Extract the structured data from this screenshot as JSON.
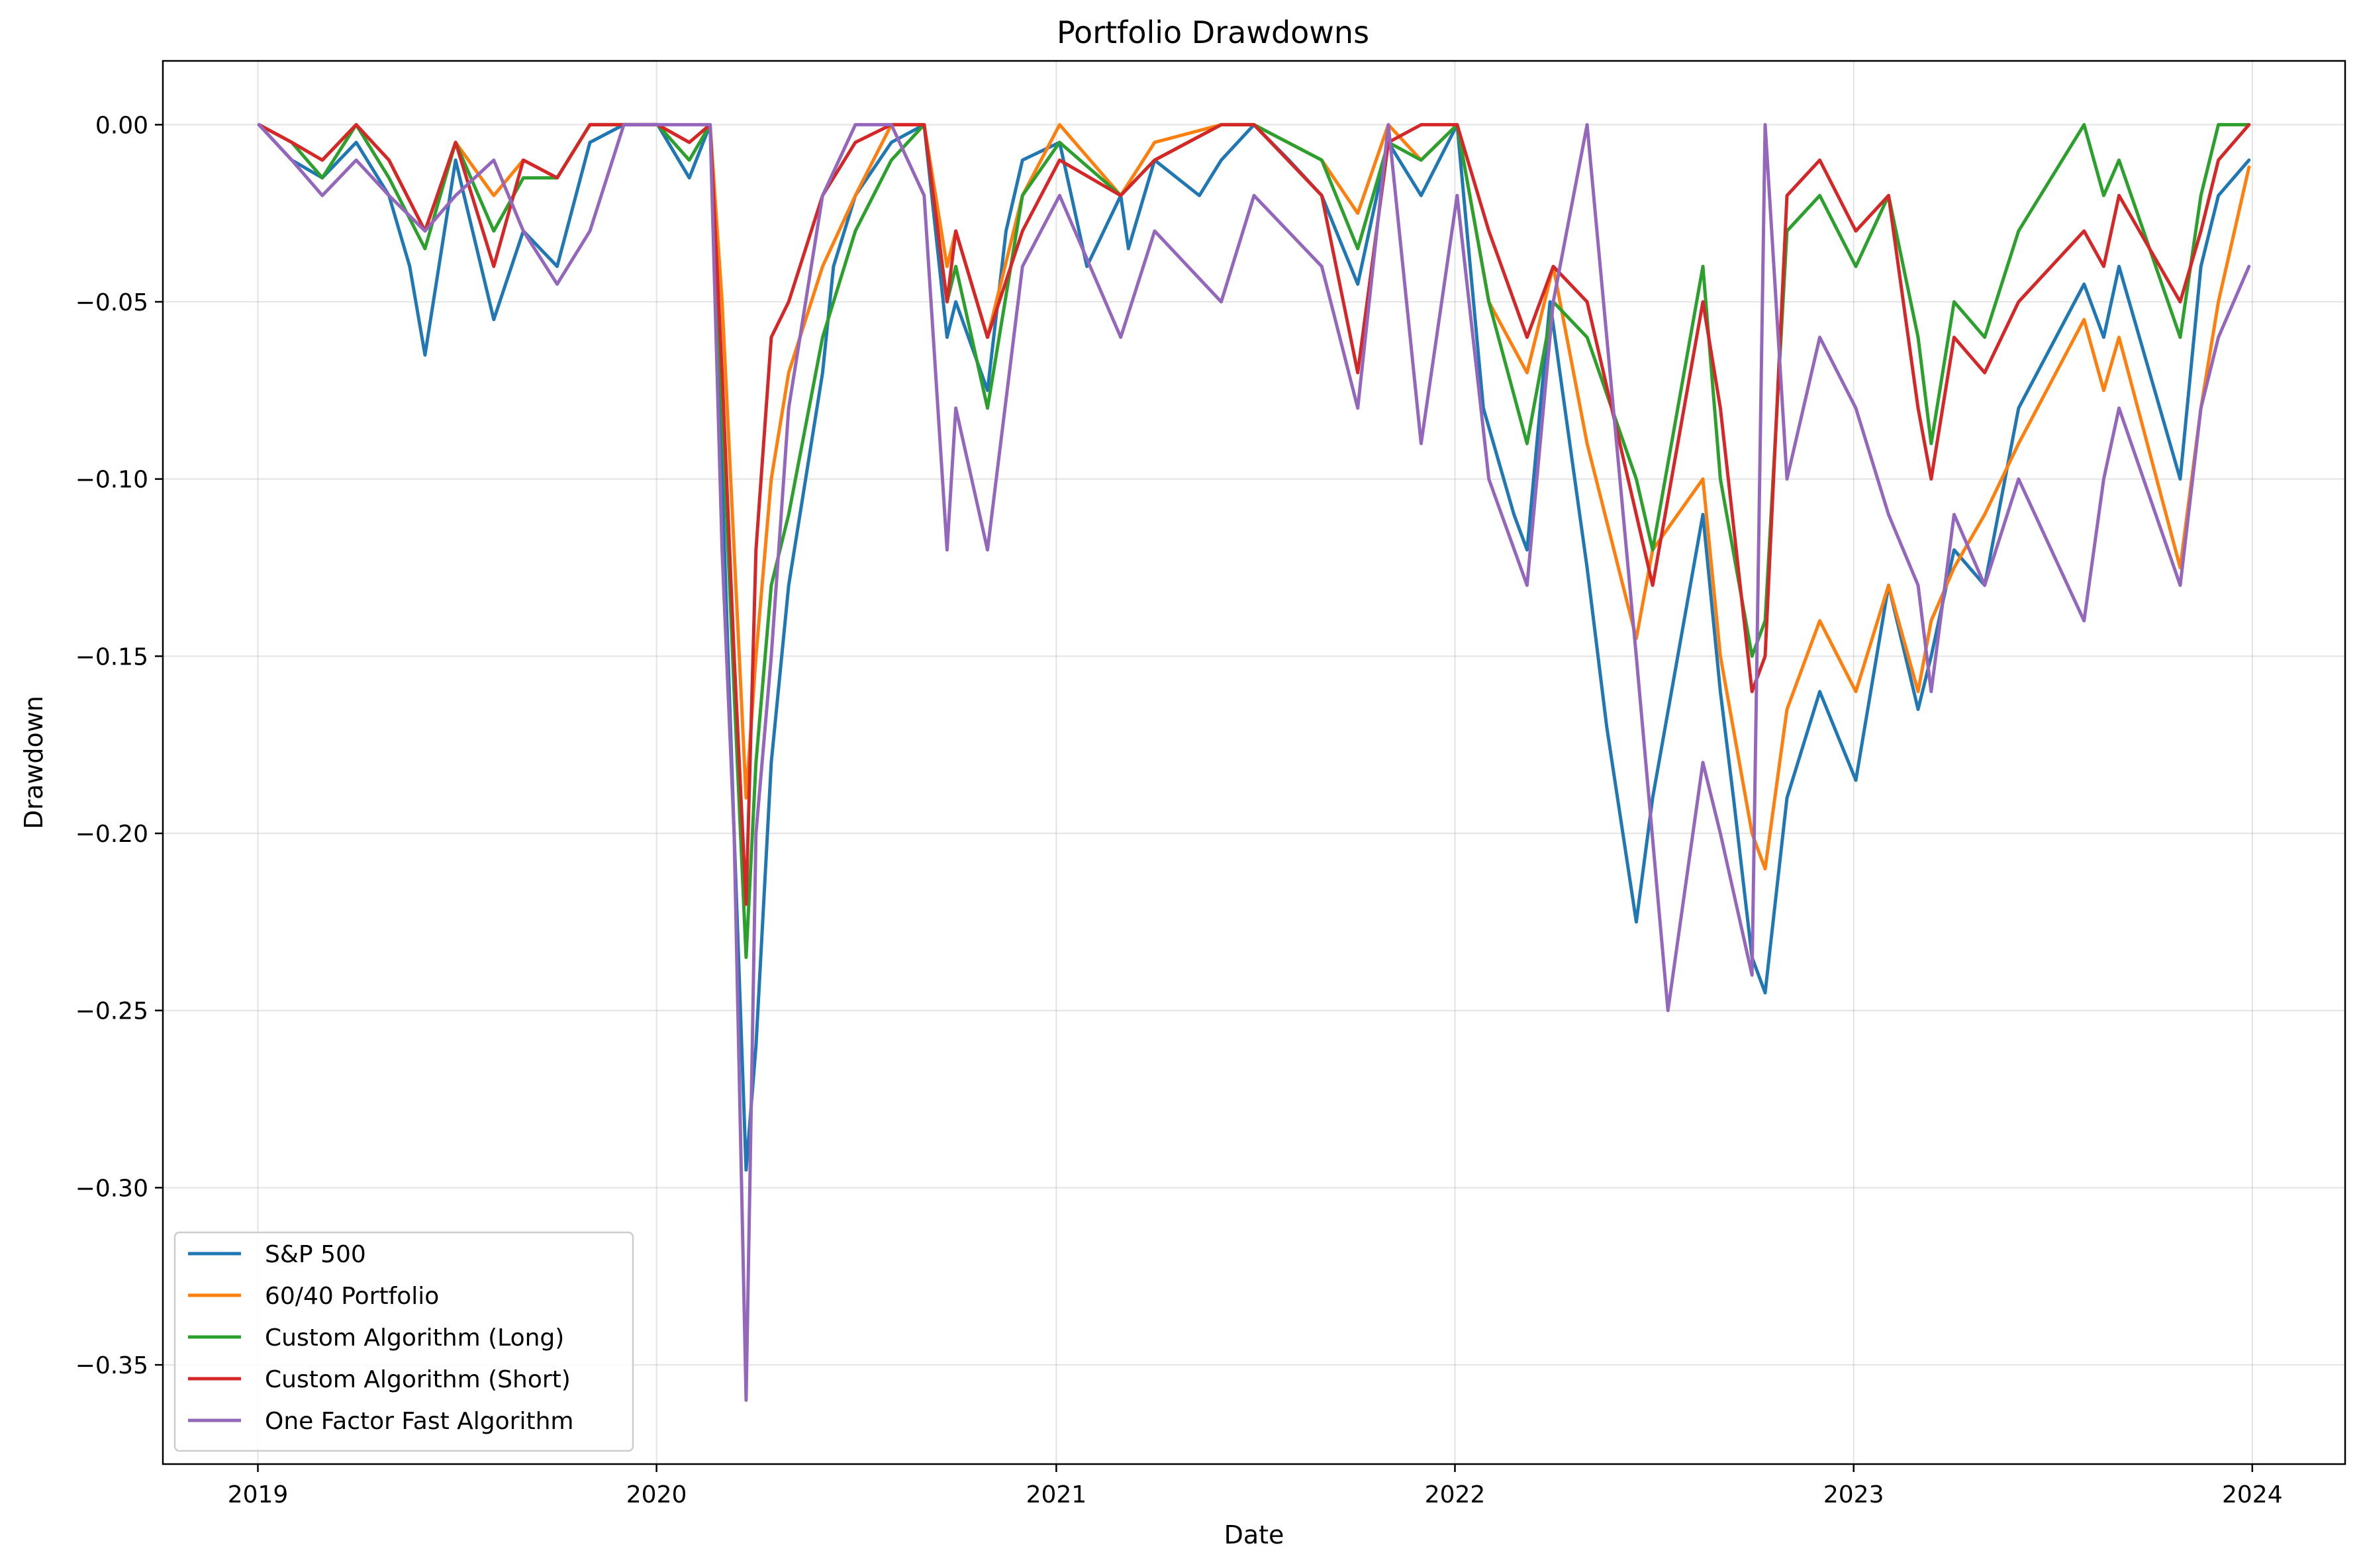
{
  "chart_data": {
    "type": "line",
    "title": "Portfolio Drawdowns",
    "xlabel": "Date",
    "ylabel": "Drawdown",
    "x_type": "date",
    "xlim": [
      "2018-10-06",
      "2024-03-26"
    ],
    "ylim": [
      -0.378,
      0.018
    ],
    "x_ticks": [
      "2019-01-01",
      "2020-01-01",
      "2021-01-01",
      "2022-01-01",
      "2023-01-01",
      "2024-01-01"
    ],
    "x_tick_labels": [
      "2019",
      "2020",
      "2021",
      "2022",
      "2023",
      "2024"
    ],
    "y_ticks": [
      0.0,
      -0.05,
      -0.1,
      -0.15,
      -0.2,
      -0.25,
      -0.3,
      -0.35
    ],
    "y_tick_labels": [
      "0.00",
      "−0.05",
      "−0.10",
      "−0.15",
      "−0.20",
      "−0.25",
      "−0.30",
      "−0.35"
    ],
    "grid": true,
    "legend_position": "lower-left",
    "series": [
      {
        "name": "S&P 500",
        "color": "#1f77b4",
        "x": [
          "2019-01-02",
          "2019-02-01",
          "2019-03-01",
          "2019-04-01",
          "2019-05-01",
          "2019-05-20",
          "2019-06-03",
          "2019-07-01",
          "2019-08-05",
          "2019-09-01",
          "2019-10-02",
          "2019-11-01",
          "2019-12-02",
          "2020-01-02",
          "2020-01-31",
          "2020-02-19",
          "2020-03-01",
          "2020-03-12",
          "2020-03-23",
          "2020-04-01",
          "2020-04-15",
          "2020-05-01",
          "2020-06-01",
          "2020-06-11",
          "2020-07-01",
          "2020-08-03",
          "2020-09-02",
          "2020-09-23",
          "2020-10-01",
          "2020-10-30",
          "2020-11-16",
          "2020-12-01",
          "2021-01-04",
          "2021-01-29",
          "2021-03-01",
          "2021-03-08",
          "2021-04-01",
          "2021-05-12",
          "2021-06-01",
          "2021-07-01",
          "2021-08-02",
          "2021-09-01",
          "2021-10-04",
          "2021-11-01",
          "2021-12-01",
          "2022-01-03",
          "2022-01-27",
          "2022-02-24",
          "2022-03-08",
          "2022-03-29",
          "2022-05-02",
          "2022-05-20",
          "2022-06-16",
          "2022-07-01",
          "2022-08-16",
          "2022-09-01",
          "2022-09-13",
          "2022-09-30",
          "2022-10-12",
          "2022-11-01",
          "2022-12-01",
          "2023-01-03",
          "2023-02-02",
          "2023-03-01",
          "2023-03-13",
          "2023-04-03",
          "2023-05-01",
          "2023-06-01",
          "2023-07-31",
          "2023-08-18",
          "2023-09-01",
          "2023-10-27",
          "2023-11-15",
          "2023-12-01",
          "2023-12-29"
        ],
        "values": [
          0.0,
          -0.01,
          -0.015,
          -0.005,
          -0.02,
          -0.04,
          -0.065,
          -0.01,
          -0.055,
          -0.03,
          -0.04,
          -0.005,
          0.0,
          0.0,
          -0.015,
          0.0,
          -0.1,
          -0.2,
          -0.295,
          -0.26,
          -0.18,
          -0.13,
          -0.07,
          -0.04,
          -0.02,
          -0.005,
          0.0,
          -0.06,
          -0.05,
          -0.075,
          -0.03,
          -0.01,
          -0.005,
          -0.04,
          -0.02,
          -0.035,
          -0.01,
          -0.02,
          -0.01,
          0.0,
          -0.01,
          -0.02,
          -0.045,
          -0.005,
          -0.02,
          0.0,
          -0.08,
          -0.11,
          -0.12,
          -0.05,
          -0.125,
          -0.17,
          -0.225,
          -0.19,
          -0.11,
          -0.16,
          -0.19,
          -0.235,
          -0.245,
          -0.19,
          -0.16,
          -0.185,
          -0.13,
          -0.165,
          -0.15,
          -0.12,
          -0.13,
          -0.08,
          -0.045,
          -0.06,
          -0.04,
          -0.1,
          -0.04,
          -0.02,
          -0.01
        ]
      },
      {
        "name": "60/40 Portfolio",
        "color": "#ff7f0e",
        "x": [
          "2019-01-02",
          "2019-02-01",
          "2019-03-01",
          "2019-04-01",
          "2019-05-01",
          "2019-06-03",
          "2019-07-01",
          "2019-08-05",
          "2019-09-01",
          "2019-10-02",
          "2019-11-01",
          "2019-12-02",
          "2020-01-02",
          "2020-01-31",
          "2020-02-19",
          "2020-03-01",
          "2020-03-12",
          "2020-03-23",
          "2020-04-01",
          "2020-04-15",
          "2020-05-01",
          "2020-06-01",
          "2020-07-01",
          "2020-08-03",
          "2020-09-02",
          "2020-09-23",
          "2020-10-01",
          "2020-10-30",
          "2020-12-01",
          "2021-01-04",
          "2021-03-01",
          "2021-04-01",
          "2021-06-01",
          "2021-07-01",
          "2021-09-01",
          "2021-10-04",
          "2021-11-01",
          "2021-12-01",
          "2022-01-03",
          "2022-02-01",
          "2022-03-08",
          "2022-04-01",
          "2022-05-02",
          "2022-06-16",
          "2022-07-01",
          "2022-08-16",
          "2022-09-01",
          "2022-09-30",
          "2022-10-12",
          "2022-11-01",
          "2022-12-01",
          "2023-01-03",
          "2023-02-02",
          "2023-03-01",
          "2023-03-13",
          "2023-04-03",
          "2023-05-01",
          "2023-06-01",
          "2023-07-31",
          "2023-08-18",
          "2023-09-01",
          "2023-10-27",
          "2023-11-15",
          "2023-12-01",
          "2023-12-29"
        ],
        "values": [
          0.0,
          -0.005,
          -0.01,
          0.0,
          -0.01,
          -0.03,
          -0.005,
          -0.02,
          -0.01,
          -0.015,
          0.0,
          0.0,
          0.0,
          -0.005,
          0.0,
          -0.05,
          -0.12,
          -0.19,
          -0.15,
          -0.1,
          -0.07,
          -0.04,
          -0.02,
          0.0,
          0.0,
          -0.04,
          -0.03,
          -0.06,
          -0.02,
          0.0,
          -0.02,
          -0.005,
          0.0,
          0.0,
          -0.01,
          -0.025,
          0.0,
          -0.01,
          0.0,
          -0.05,
          -0.07,
          -0.04,
          -0.09,
          -0.145,
          -0.12,
          -0.1,
          -0.15,
          -0.2,
          -0.21,
          -0.165,
          -0.14,
          -0.16,
          -0.13,
          -0.16,
          -0.14,
          -0.125,
          -0.11,
          -0.09,
          -0.055,
          -0.075,
          -0.06,
          -0.125,
          -0.08,
          -0.05,
          -0.012
        ]
      },
      {
        "name": "Custom Algorithm (Long)",
        "color": "#2ca02c",
        "x": [
          "2019-01-02",
          "2019-02-01",
          "2019-03-01",
          "2019-04-01",
          "2019-05-01",
          "2019-06-03",
          "2019-07-01",
          "2019-08-05",
          "2019-09-01",
          "2019-10-02",
          "2019-11-01",
          "2019-12-02",
          "2020-01-02",
          "2020-01-31",
          "2020-02-19",
          "2020-03-01",
          "2020-03-12",
          "2020-03-23",
          "2020-04-01",
          "2020-04-15",
          "2020-05-01",
          "2020-06-01",
          "2020-07-01",
          "2020-08-03",
          "2020-09-02",
          "2020-09-23",
          "2020-10-01",
          "2020-10-30",
          "2020-12-01",
          "2021-01-04",
          "2021-03-01",
          "2021-04-01",
          "2021-06-01",
          "2021-07-01",
          "2021-09-01",
          "2021-10-04",
          "2021-11-01",
          "2021-12-01",
          "2022-01-03",
          "2022-02-01",
          "2022-03-08",
          "2022-04-01",
          "2022-05-02",
          "2022-06-16",
          "2022-07-01",
          "2022-08-16",
          "2022-09-01",
          "2022-09-30",
          "2022-10-12",
          "2022-11-01",
          "2022-12-01",
          "2023-01-03",
          "2023-02-02",
          "2023-03-01",
          "2023-03-13",
          "2023-04-03",
          "2023-05-01",
          "2023-06-01",
          "2023-07-31",
          "2023-08-18",
          "2023-09-01",
          "2023-10-27",
          "2023-11-15",
          "2023-12-01",
          "2023-12-29"
        ],
        "values": [
          0.0,
          -0.005,
          -0.015,
          0.0,
          -0.015,
          -0.035,
          -0.005,
          -0.03,
          -0.015,
          -0.015,
          0.0,
          0.0,
          0.0,
          -0.01,
          0.0,
          -0.08,
          -0.16,
          -0.235,
          -0.18,
          -0.13,
          -0.11,
          -0.06,
          -0.03,
          -0.01,
          0.0,
          -0.05,
          -0.04,
          -0.08,
          -0.02,
          -0.005,
          -0.02,
          -0.01,
          0.0,
          0.0,
          -0.01,
          -0.035,
          -0.005,
          -0.01,
          0.0,
          -0.05,
          -0.09,
          -0.05,
          -0.06,
          -0.1,
          -0.12,
          -0.04,
          -0.1,
          -0.15,
          -0.14,
          -0.03,
          -0.02,
          -0.04,
          -0.02,
          -0.06,
          -0.09,
          -0.05,
          -0.06,
          -0.03,
          0.0,
          -0.02,
          -0.01,
          -0.06,
          -0.02,
          0.0,
          0.0
        ]
      },
      {
        "name": "Custom Algorithm (Short)",
        "color": "#d62728",
        "x": [
          "2019-01-02",
          "2019-02-01",
          "2019-03-01",
          "2019-04-01",
          "2019-05-01",
          "2019-06-03",
          "2019-07-01",
          "2019-08-05",
          "2019-09-01",
          "2019-10-02",
          "2019-11-01",
          "2019-12-02",
          "2020-01-02",
          "2020-01-31",
          "2020-02-19",
          "2020-03-01",
          "2020-03-12",
          "2020-03-23",
          "2020-04-01",
          "2020-04-15",
          "2020-05-01",
          "2020-06-01",
          "2020-07-01",
          "2020-08-03",
          "2020-09-02",
          "2020-09-23",
          "2020-10-01",
          "2020-10-30",
          "2020-12-01",
          "2021-01-04",
          "2021-03-01",
          "2021-04-01",
          "2021-06-01",
          "2021-07-01",
          "2021-09-01",
          "2021-10-04",
          "2021-11-01",
          "2021-12-01",
          "2022-01-03",
          "2022-02-01",
          "2022-03-08",
          "2022-04-01",
          "2022-05-02",
          "2022-06-16",
          "2022-07-01",
          "2022-08-16",
          "2022-09-01",
          "2022-09-30",
          "2022-10-12",
          "2022-11-01",
          "2022-12-01",
          "2023-01-03",
          "2023-02-02",
          "2023-03-01",
          "2023-03-13",
          "2023-04-03",
          "2023-05-01",
          "2023-06-01",
          "2023-07-31",
          "2023-08-18",
          "2023-09-01",
          "2023-10-27",
          "2023-11-15",
          "2023-12-01",
          "2023-12-29"
        ],
        "values": [
          0.0,
          -0.005,
          -0.01,
          0.0,
          -0.01,
          -0.03,
          -0.005,
          -0.04,
          -0.01,
          -0.015,
          0.0,
          0.0,
          0.0,
          -0.005,
          0.0,
          -0.07,
          -0.15,
          -0.22,
          -0.12,
          -0.06,
          -0.05,
          -0.02,
          -0.005,
          0.0,
          0.0,
          -0.05,
          -0.03,
          -0.06,
          -0.03,
          -0.01,
          -0.02,
          -0.01,
          0.0,
          0.0,
          -0.02,
          -0.07,
          -0.005,
          0.0,
          0.0,
          -0.03,
          -0.06,
          -0.04,
          -0.05,
          -0.11,
          -0.13,
          -0.05,
          -0.08,
          -0.16,
          -0.15,
          -0.02,
          -0.01,
          -0.03,
          -0.02,
          -0.08,
          -0.1,
          -0.06,
          -0.07,
          -0.05,
          -0.03,
          -0.04,
          -0.02,
          -0.05,
          -0.03,
          -0.01,
          0.0
        ]
      },
      {
        "name": "One Factor Fast Algorithm",
        "color": "#9467bd",
        "x": [
          "2019-01-02",
          "2019-02-01",
          "2019-03-01",
          "2019-04-01",
          "2019-05-01",
          "2019-06-03",
          "2019-07-01",
          "2019-08-05",
          "2019-09-01",
          "2019-10-02",
          "2019-11-01",
          "2019-12-02",
          "2020-01-02",
          "2020-01-31",
          "2020-02-19",
          "2020-03-01",
          "2020-03-12",
          "2020-03-23",
          "2020-04-01",
          "2020-04-15",
          "2020-05-01",
          "2020-06-01",
          "2020-07-01",
          "2020-08-03",
          "2020-09-02",
          "2020-09-23",
          "2020-10-01",
          "2020-10-30",
          "2020-12-01",
          "2021-01-04",
          "2021-03-01",
          "2021-04-01",
          "2021-06-01",
          "2021-07-01",
          "2021-09-01",
          "2021-10-04",
          "2021-11-01",
          "2021-12-01",
          "2022-01-03",
          "2022-02-01",
          "2022-03-08",
          "2022-04-01",
          "2022-05-02",
          "2022-06-16",
          "2022-07-15",
          "2022-08-16",
          "2022-09-01",
          "2022-09-30",
          "2022-10-12",
          "2022-11-01",
          "2022-12-01",
          "2023-01-03",
          "2023-02-02",
          "2023-03-01",
          "2023-03-13",
          "2023-04-03",
          "2023-05-01",
          "2023-06-01",
          "2023-07-31",
          "2023-08-18",
          "2023-09-01",
          "2023-10-27",
          "2023-11-15",
          "2023-12-01",
          "2023-12-29"
        ],
        "values": [
          0.0,
          -0.01,
          -0.02,
          -0.01,
          -0.02,
          -0.03,
          -0.02,
          -0.01,
          -0.03,
          -0.045,
          -0.03,
          0.0,
          0.0,
          0.0,
          0.0,
          -0.12,
          -0.2,
          -0.36,
          -0.2,
          -0.15,
          -0.08,
          -0.02,
          0.0,
          0.0,
          -0.02,
          -0.12,
          -0.08,
          -0.12,
          -0.04,
          -0.02,
          -0.06,
          -0.03,
          -0.05,
          -0.02,
          -0.04,
          -0.08,
          0.0,
          -0.09,
          -0.02,
          -0.1,
          -0.13,
          -0.05,
          0.0,
          -0.15,
          -0.25,
          -0.18,
          -0.2,
          -0.24,
          0.0,
          -0.1,
          -0.06,
          -0.08,
          -0.11,
          -0.13,
          -0.16,
          -0.11,
          -0.13,
          -0.1,
          -0.14,
          -0.1,
          -0.08,
          -0.13,
          -0.08,
          -0.06,
          -0.04
        ]
      }
    ]
  }
}
